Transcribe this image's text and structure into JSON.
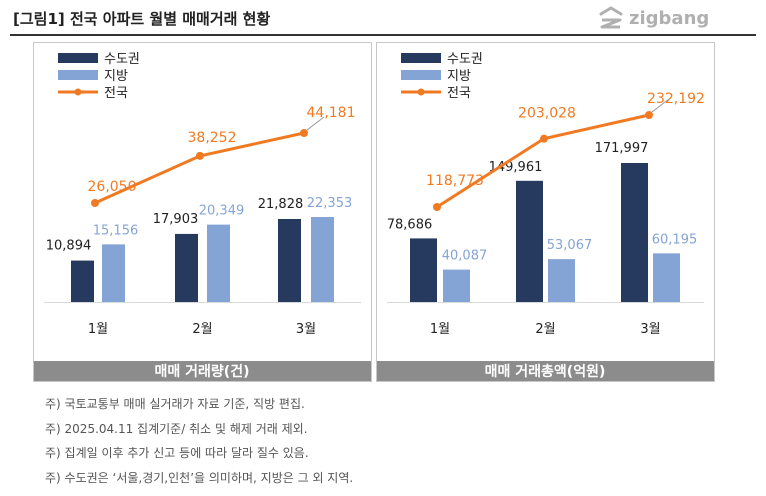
{
  "header": {
    "title": "[그림1] 전국 아파트 월별 매매거래 현황",
    "logo_text": "zigbang"
  },
  "colors": {
    "capital": "#253a5e",
    "local": "#85a4d6",
    "national": "#f07a22",
    "footer_bg": "#8c8c8c"
  },
  "chart_data": [
    {
      "type": "bar",
      "categories": [
        "1월",
        "2월",
        "3월"
      ],
      "series": [
        {
          "name": "수도권",
          "kind": "bar",
          "values": [
            10894,
            17903,
            21828
          ],
          "labels": [
            "10,894",
            "17,903",
            "21,828"
          ]
        },
        {
          "name": "지방",
          "kind": "bar",
          "values": [
            15156,
            20349,
            22353
          ],
          "labels": [
            "15,156",
            "20,349",
            "22,353"
          ]
        },
        {
          "name": "전국",
          "kind": "line",
          "values": [
            26050,
            38252,
            44181
          ],
          "labels": [
            "26,050",
            "38,252",
            "44,181"
          ]
        }
      ],
      "title": "매매 거래량(건)",
      "legend": "top-left",
      "grid": false
    },
    {
      "type": "bar",
      "categories": [
        "1월",
        "2월",
        "3월"
      ],
      "series": [
        {
          "name": "수도권",
          "kind": "bar",
          "values": [
            78686,
            149961,
            171997
          ],
          "labels": [
            "78,686",
            "149,961",
            "171,997"
          ]
        },
        {
          "name": "지방",
          "kind": "bar",
          "values": [
            40087,
            53067,
            60195
          ],
          "labels": [
            "40,087",
            "53,067",
            "60,195"
          ]
        },
        {
          "name": "전국",
          "kind": "line",
          "values": [
            118773,
            203028,
            232192
          ],
          "labels": [
            "118,773",
            "203,028",
            "232,192"
          ]
        }
      ],
      "title": "매매 거래총액(억원)",
      "legend": "top-left",
      "grid": false
    }
  ],
  "notes": [
    "주) 국토교통부 매매 실거래가 자료 기준, 직방 편집.",
    "주) 2025.04.11 집계기준/ 취소 및 해제 거래 제외.",
    "주) 집계일 이후 추가 신고 등에 따라 달라 질수 있음.",
    "주) 수도권은 ‘서울,경기,인천’을 의미하며, 지방은 그 외 지역."
  ]
}
